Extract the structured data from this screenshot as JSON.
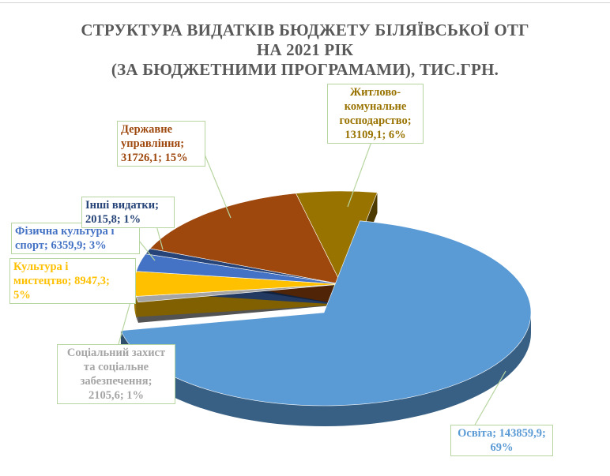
{
  "chart_data": {
    "type": "pie",
    "title_lines": [
      "СТРУКТУРА ВИДАТКІВ БЮДЖЕТУ БІЛЯЇВСЬКОЇ ОТГ",
      "НА 2021 РІК",
      "(ЗА БЮДЖЕТНИМИ ПРОГРАМАМИ), ТИС.ГРН."
    ],
    "unit": "тис.грн.",
    "slices": [
      {
        "name": "Освіта",
        "value": 143859.9,
        "percent": 69,
        "color": "#5b9bd5",
        "label_lines": [
          "Освіта; 143859,9;",
          "69%"
        ]
      },
      {
        "name": "Соціальний захист та соціальне забезпечення",
        "value": 2105.6,
        "percent": 1,
        "color": "#a5a5a5",
        "label_lines": [
          "Соціальний захист",
          "та соціальне",
          "забезпечення;",
          "2105,6; 1%"
        ]
      },
      {
        "name": "Культура і мистецтво",
        "value": 8947.3,
        "percent": 5,
        "color": "#ffc000",
        "label_lines": [
          "Культура і",
          "мистецтво; 8947,3;",
          "5%"
        ]
      },
      {
        "name": "Фізична культура і спорт",
        "value": 6359.9,
        "percent": 3,
        "color": "#4472c4",
        "label_lines": [
          "Фізична культура і",
          "спорт; 6359,9; 3%"
        ]
      },
      {
        "name": "Інші видатки",
        "value": 2015.8,
        "percent": 1,
        "color": "#264478",
        "label_lines": [
          "Інші видатки;",
          "2015,8; 1%"
        ]
      },
      {
        "name": "Державне управління",
        "value": 31726.1,
        "percent": 15,
        "color": "#9e480e",
        "label_lines": [
          "Державне",
          "управління;",
          "31726,1; 15%"
        ]
      },
      {
        "name": "Житлово-комунальне господарство",
        "value": 13109.1,
        "percent": 6,
        "color": "#997300",
        "label_lines": [
          "Житлово-",
          "комунальне",
          "господарство;",
          "13109,1; 6%"
        ]
      }
    ]
  }
}
